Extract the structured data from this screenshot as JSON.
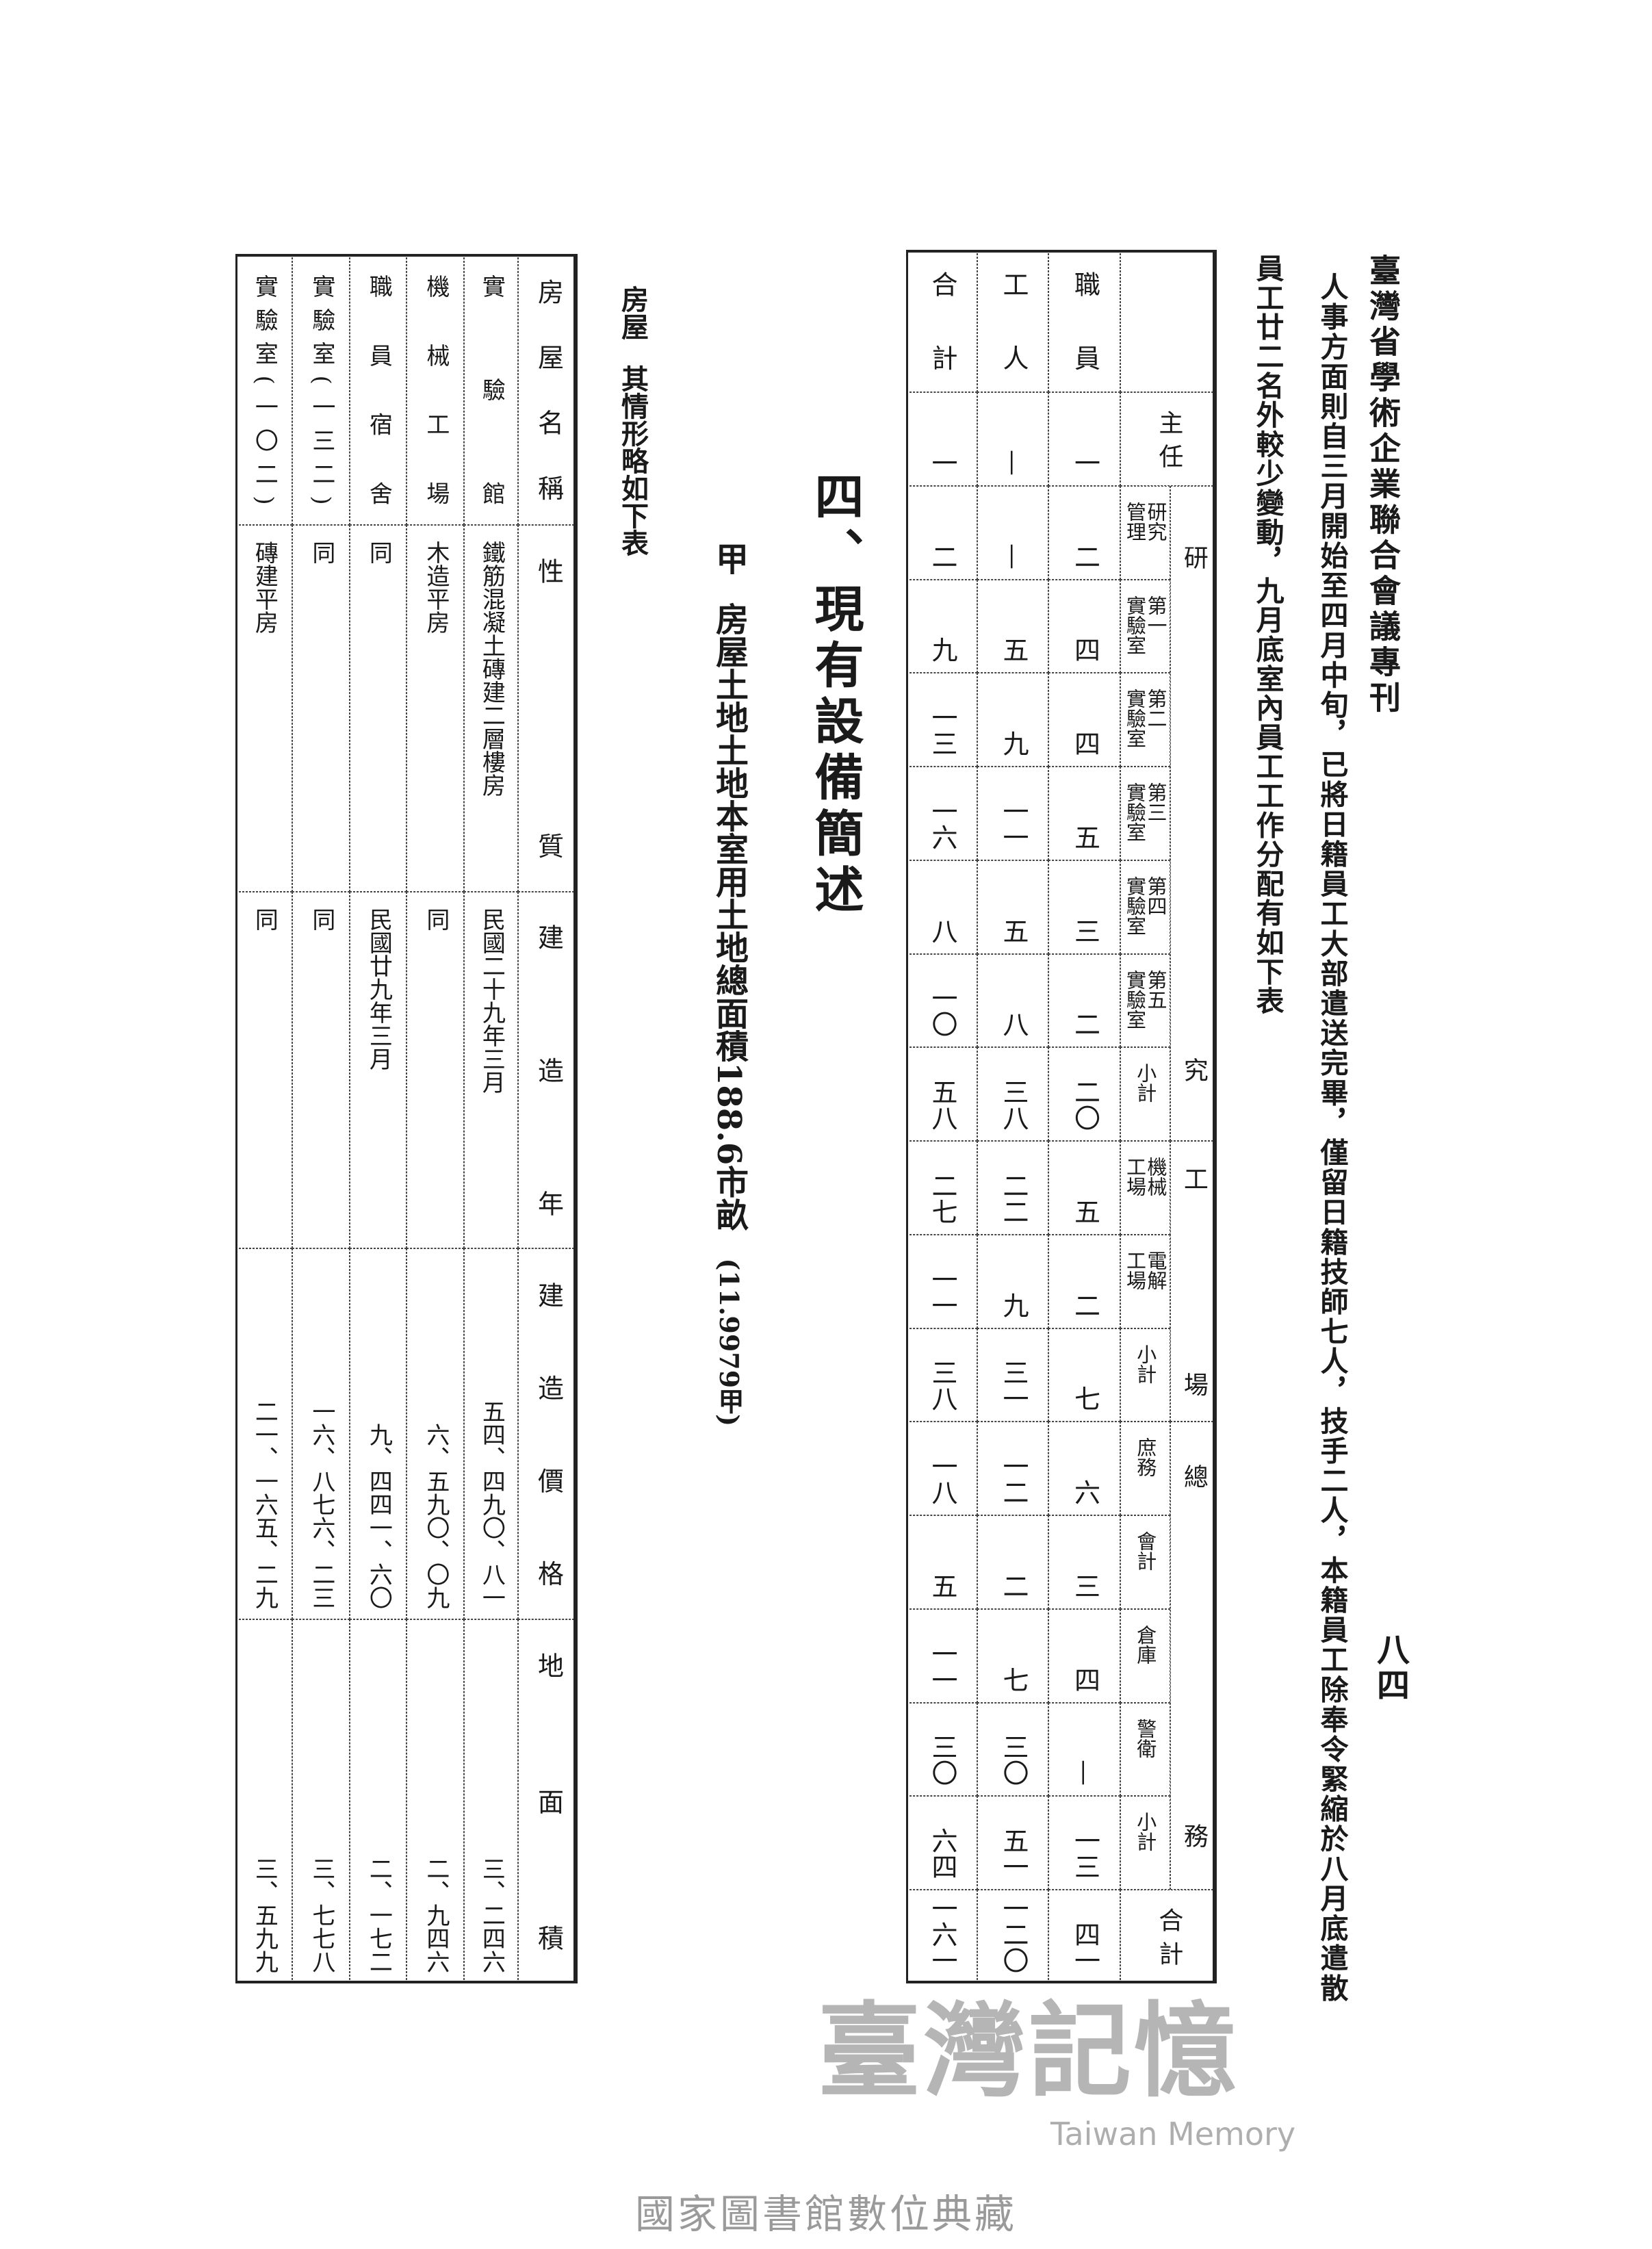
{
  "header": {
    "running_title": "臺灣省學術企業聯合會議專刊",
    "page_number": "八四"
  },
  "body": {
    "line_1": "人事方面則自三月開始至四月中旬，已將日籍員工大部遣送完畢，僅留日籍技師七人，技手二人，本籍員工除奉令緊縮於八月底遣散",
    "line_2": "員工廿二名外較少變動，九月底室內員工工作分配有如下表"
  },
  "staff_table": {
    "column_headers": [
      "職員",
      "工人",
      "合計"
    ],
    "groups": [
      {
        "label": "研究",
        "first_row": 1,
        "last_row": 7
      },
      {
        "label": "工場",
        "first_row": 8,
        "last_row": 10
      },
      {
        "label": "總務",
        "first_row": 11,
        "last_row": 15
      }
    ],
    "rows": [
      {
        "label": "主任",
        "full_width": true,
        "values": [
          "一",
          "—",
          "一"
        ]
      },
      {
        "label": "研究\n管理",
        "values": [
          "二",
          "—",
          "二"
        ]
      },
      {
        "label": "第一\n實驗室",
        "values": [
          "四",
          "五",
          "九"
        ]
      },
      {
        "label": "第二\n實驗室",
        "values": [
          "四",
          "九",
          "一三"
        ]
      },
      {
        "label": "第三\n實驗室",
        "values": [
          "五",
          "一一",
          "一六"
        ]
      },
      {
        "label": "第四\n實驗室",
        "values": [
          "三",
          "五",
          "八"
        ]
      },
      {
        "label": "第五\n實驗室",
        "values": [
          "二",
          "八",
          "一〇"
        ]
      },
      {
        "label": "小計",
        "values": [
          "二〇",
          "三八",
          "五八"
        ]
      },
      {
        "label": "機械\n工場",
        "values": [
          "五",
          "二二",
          "二七"
        ]
      },
      {
        "label": "電解\n工場",
        "values": [
          "二",
          "九",
          "一一"
        ]
      },
      {
        "label": "小計",
        "values": [
          "七",
          "三一",
          "三八"
        ]
      },
      {
        "label": "庶務",
        "values": [
          "六",
          "一二",
          "一八"
        ]
      },
      {
        "label": "會計",
        "values": [
          "三",
          "二",
          "五"
        ]
      },
      {
        "label": "倉庫",
        "values": [
          "四",
          "七",
          "一一"
        ]
      },
      {
        "label": "警衛",
        "values": [
          "—",
          "三〇",
          "三〇"
        ]
      },
      {
        "label": "小計",
        "values": [
          "一三",
          "五一",
          "六四"
        ]
      },
      {
        "label": "合計",
        "full_width": true,
        "values": [
          "四一",
          "一二〇",
          "一六一"
        ]
      }
    ]
  },
  "section": {
    "heading": "四、現有設備簡述",
    "land_marker": "甲",
    "land_text": "房屋土地土地本室用土地總面積188.6市畝",
    "land_note": "(11.9979甲)",
    "housing_label": "房屋",
    "housing_text": "其情形略如下表"
  },
  "housing_table": {
    "headers": [
      "房屋名稱",
      "性質",
      "建造年",
      "建造價格",
      "地面積"
    ],
    "rows": [
      {
        "name": "實驗館",
        "nature": "鐵筋混凝土磚建二層樓房",
        "year": "民國二十九年三月",
        "price": "五四、四九〇、八一",
        "area": "三、二四六"
      },
      {
        "name": "機械工場",
        "nature": "木造平房",
        "year": "同",
        "price": "六、五九〇、〇九",
        "area": "二、九四六"
      },
      {
        "name": "職員宿舍",
        "nature": "同",
        "year": "民國廿九年三月",
        "price": "九、四四一、六〇",
        "area": "二、一七二"
      },
      {
        "name": "實驗室(一三二)",
        "nature": "同",
        "year": "同",
        "price": "一六、八七六、二三",
        "area": "三、七七八"
      },
      {
        "name": "實驗室(一〇二)",
        "nature": "磚建平房",
        "year": "同",
        "price": "二一、一六五、二九",
        "area": "三、五九九"
      }
    ]
  },
  "watermark": {
    "chinese": "臺灣記憶",
    "english": "Taiwan Memory"
  },
  "footer": {
    "archive": "國家圖書館數位典藏"
  },
  "colors": {
    "ink": "#1a1a1a",
    "paper": "#ffffff",
    "watermark": "#787878",
    "footer": "#9a9a9a"
  }
}
